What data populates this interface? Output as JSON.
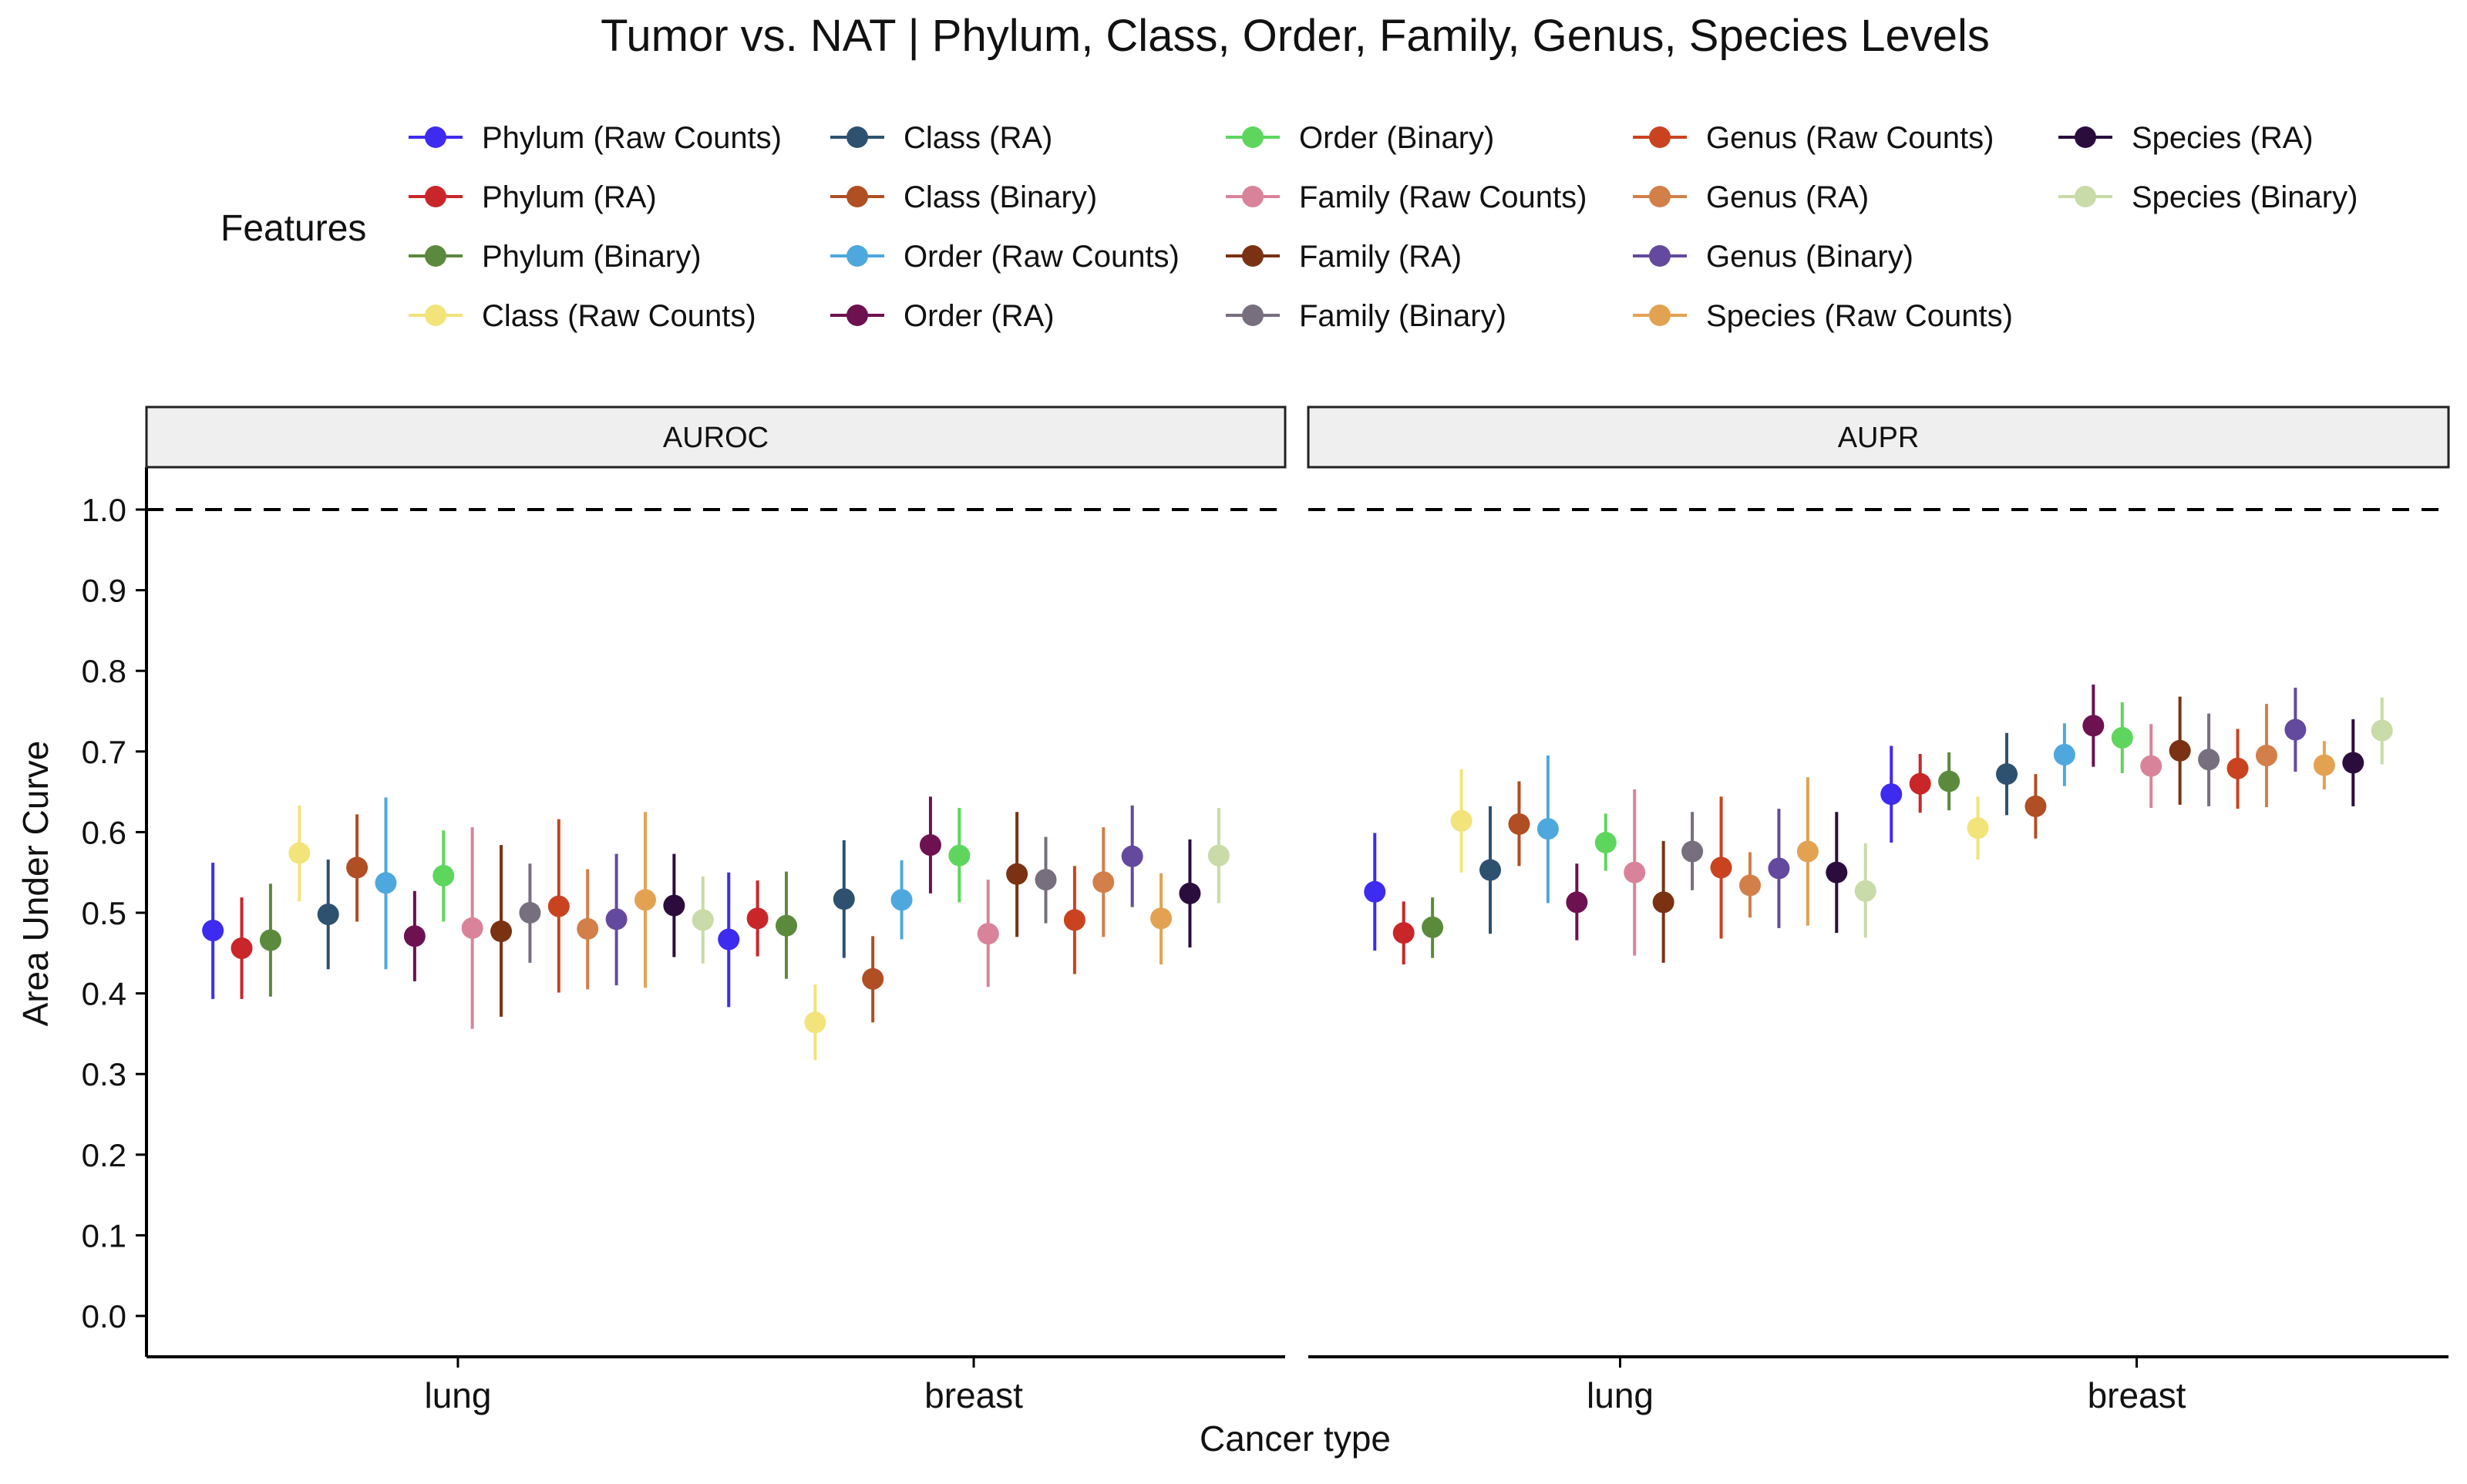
{
  "chart_data": {
    "type": "scatter",
    "title": "Tumor vs. NAT | Phylum, Class, Order, Family, Genus, Species Levels",
    "xlabel": "Cancer type",
    "ylabel": "Area Under Curve",
    "ylim": [
      0.0,
      1.0
    ],
    "yticks": [
      "0.0",
      "0.1",
      "0.2",
      "0.3",
      "0.4",
      "0.5",
      "0.6",
      "0.7",
      "0.8",
      "0.9",
      "1.0"
    ],
    "categories": [
      "lung",
      "breast"
    ],
    "reference_line": 1.0,
    "legend_title": "Features",
    "legend_position": "top",
    "grid": false,
    "panels": [
      {
        "name": "AUROC",
        "series": [
          {
            "name": "Phylum (Raw Counts)",
            "color": "#3E2BF0",
            "values": [
              [
                0.478,
                0.393,
                0.562
              ],
              [
                0.467,
                0.383,
                0.55
              ]
            ]
          },
          {
            "name": "Phylum (RA)",
            "color": "#C9262A",
            "values": [
              [
                0.456,
                0.393,
                0.519
              ],
              [
                0.493,
                0.446,
                0.54
              ]
            ]
          },
          {
            "name": "Phylum (Binary)",
            "color": "#5B8A3D",
            "values": [
              [
                0.466,
                0.396,
                0.536
              ],
              [
                0.484,
                0.418,
                0.551
              ]
            ]
          },
          {
            "name": "Class (Raw Counts)",
            "color": "#F2E47A",
            "values": [
              [
                0.574,
                0.514,
                0.633
              ],
              [
                0.364,
                0.317,
                0.411
              ]
            ]
          },
          {
            "name": "Class (RA)",
            "color": "#2E5170",
            "values": [
              [
                0.498,
                0.43,
                0.566
              ],
              [
                0.517,
                0.444,
                0.59
              ]
            ]
          },
          {
            "name": "Class (Binary)",
            "color": "#B04E24",
            "values": [
              [
                0.556,
                0.489,
                0.622
              ],
              [
                0.418,
                0.364,
                0.471
              ]
            ]
          },
          {
            "name": "Order (Raw Counts)",
            "color": "#4EA8DE",
            "values": [
              [
                0.537,
                0.43,
                0.643
              ],
              [
                0.516,
                0.467,
                0.565
              ]
            ]
          },
          {
            "name": "Order (RA)",
            "color": "#6E1151",
            "values": [
              [
                0.471,
                0.415,
                0.527
              ],
              [
                0.584,
                0.524,
                0.644
              ]
            ]
          },
          {
            "name": "Order (Binary)",
            "color": "#5ED65E",
            "values": [
              [
                0.546,
                0.489,
                0.602
              ],
              [
                0.571,
                0.513,
                0.63
              ]
            ]
          },
          {
            "name": "Family (Raw Counts)",
            "color": "#D9839A",
            "values": [
              [
                0.481,
                0.356,
                0.606
              ],
              [
                0.474,
                0.408,
                0.541
              ]
            ]
          },
          {
            "name": "Family (RA)",
            "color": "#7A3212",
            "values": [
              [
                0.477,
                0.371,
                0.584
              ],
              [
                0.548,
                0.47,
                0.625
              ]
            ]
          },
          {
            "name": "Family (Binary)",
            "color": "#776E7E",
            "values": [
              [
                0.5,
                0.438,
                0.561
              ],
              [
                0.541,
                0.487,
                0.594
              ]
            ]
          },
          {
            "name": "Genus (Raw Counts)",
            "color": "#C94320",
            "values": [
              [
                0.508,
                0.401,
                0.616
              ],
              [
                0.491,
                0.424,
                0.558
              ]
            ]
          },
          {
            "name": "Genus (RA)",
            "color": "#D27F4A",
            "values": [
              [
                0.48,
                0.405,
                0.554
              ],
              [
                0.538,
                0.47,
                0.606
              ]
            ]
          },
          {
            "name": "Genus (Binary)",
            "color": "#644A9E",
            "values": [
              [
                0.492,
                0.41,
                0.573
              ],
              [
                0.57,
                0.507,
                0.633
              ]
            ]
          },
          {
            "name": "Species (Raw Counts)",
            "color": "#E3A252",
            "values": [
              [
                0.516,
                0.407,
                0.625
              ],
              [
                0.493,
                0.436,
                0.549
              ]
            ]
          },
          {
            "name": "Species (RA)",
            "color": "#2B0D3D",
            "values": [
              [
                0.509,
                0.445,
                0.573
              ],
              [
                0.524,
                0.457,
                0.591
              ]
            ]
          },
          {
            "name": "Species (Binary)",
            "color": "#C8DBA8",
            "values": [
              [
                0.491,
                0.437,
                0.545
              ],
              [
                0.571,
                0.512,
                0.63
              ]
            ]
          }
        ]
      },
      {
        "name": "AUPR",
        "series": [
          {
            "name": "Phylum (Raw Counts)",
            "color": "#3E2BF0",
            "values": [
              [
                0.526,
                0.453,
                0.599
              ],
              [
                0.647,
                0.587,
                0.707
              ]
            ]
          },
          {
            "name": "Phylum (RA)",
            "color": "#C9262A",
            "values": [
              [
                0.475,
                0.436,
                0.514
              ],
              [
                0.66,
                0.624,
                0.697
              ]
            ]
          },
          {
            "name": "Phylum (Binary)",
            "color": "#5B8A3D",
            "values": [
              [
                0.482,
                0.444,
                0.519
              ],
              [
                0.663,
                0.627,
                0.699
              ]
            ]
          },
          {
            "name": "Class (Raw Counts)",
            "color": "#F2E47A",
            "values": [
              [
                0.614,
                0.55,
                0.678
              ],
              [
                0.605,
                0.566,
                0.644
              ]
            ]
          },
          {
            "name": "Class (RA)",
            "color": "#2E5170",
            "values": [
              [
                0.553,
                0.474,
                0.632
              ],
              [
                0.672,
                0.621,
                0.723
              ]
            ]
          },
          {
            "name": "Class (Binary)",
            "color": "#B04E24",
            "values": [
              [
                0.61,
                0.558,
                0.663
              ],
              [
                0.632,
                0.592,
                0.672
              ]
            ]
          },
          {
            "name": "Order (Raw Counts)",
            "color": "#4EA8DE",
            "values": [
              [
                0.604,
                0.512,
                0.695
              ],
              [
                0.696,
                0.657,
                0.735
              ]
            ]
          },
          {
            "name": "Order (RA)",
            "color": "#6E1151",
            "values": [
              [
                0.513,
                0.466,
                0.561
              ],
              [
                0.732,
                0.681,
                0.783
              ]
            ]
          },
          {
            "name": "Order (Binary)",
            "color": "#5ED65E",
            "values": [
              [
                0.587,
                0.552,
                0.623
              ],
              [
                0.717,
                0.673,
                0.761
              ]
            ]
          },
          {
            "name": "Family (Raw Counts)",
            "color": "#D9839A",
            "values": [
              [
                0.55,
                0.447,
                0.653
              ],
              [
                0.682,
                0.63,
                0.734
              ]
            ]
          },
          {
            "name": "Family (RA)",
            "color": "#7A3212",
            "values": [
              [
                0.513,
                0.438,
                0.589
              ],
              [
                0.701,
                0.634,
                0.768
              ]
            ]
          },
          {
            "name": "Family (Binary)",
            "color": "#776E7E",
            "values": [
              [
                0.576,
                0.528,
                0.625
              ],
              [
                0.69,
                0.632,
                0.747
              ]
            ]
          },
          {
            "name": "Genus (Raw Counts)",
            "color": "#C94320",
            "values": [
              [
                0.556,
                0.468,
                0.644
              ],
              [
                0.679,
                0.629,
                0.728
              ]
            ]
          },
          {
            "name": "Genus (RA)",
            "color": "#D27F4A",
            "values": [
              [
                0.534,
                0.494,
                0.575
              ],
              [
                0.695,
                0.631,
                0.759
              ]
            ]
          },
          {
            "name": "Genus (Binary)",
            "color": "#644A9E",
            "values": [
              [
                0.555,
                0.481,
                0.629
              ],
              [
                0.727,
                0.675,
                0.779
              ]
            ]
          },
          {
            "name": "Species (Raw Counts)",
            "color": "#E3A252",
            "values": [
              [
                0.576,
                0.484,
                0.668
              ],
              [
                0.683,
                0.653,
                0.713
              ]
            ]
          },
          {
            "name": "Species (RA)",
            "color": "#2B0D3D",
            "values": [
              [
                0.55,
                0.475,
                0.625
              ],
              [
                0.686,
                0.632,
                0.74
              ]
            ]
          },
          {
            "name": "Species (Binary)",
            "color": "#C8DBA8",
            "values": [
              [
                0.527,
                0.469,
                0.586
              ],
              [
                0.726,
                0.684,
                0.767
              ]
            ]
          }
        ]
      }
    ]
  }
}
